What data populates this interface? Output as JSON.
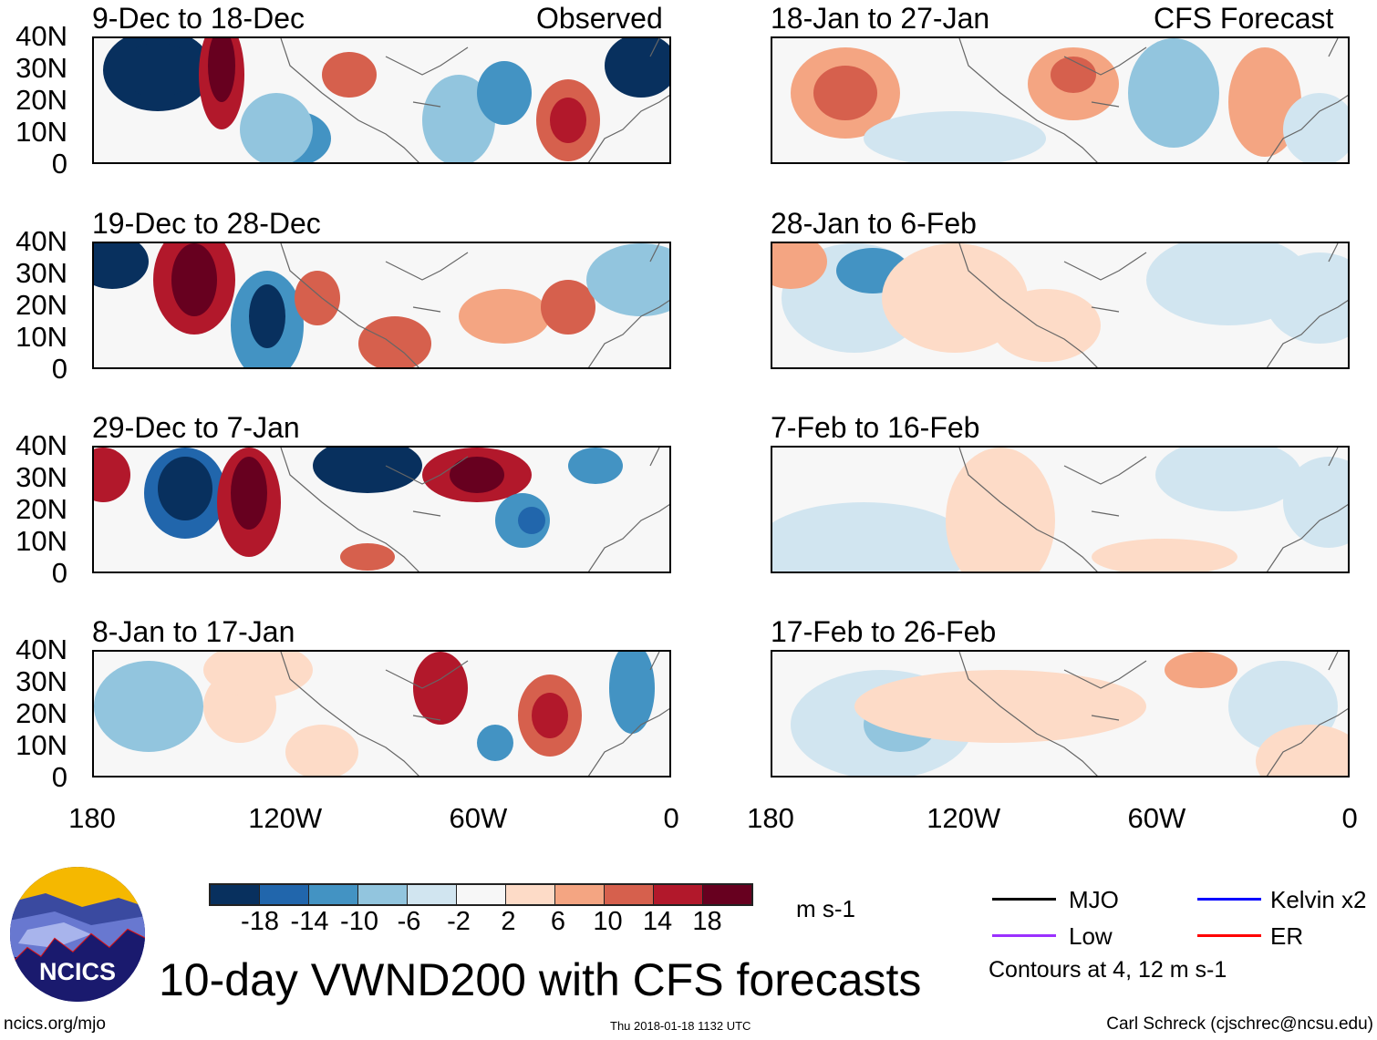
{
  "chart_data": {
    "type": "heatmap",
    "title": "10-day VWND200 with CFS forecasts",
    "units": "m s-1",
    "column_labels": {
      "left": "Observed",
      "right": "CFS Forecast"
    },
    "panels": [
      {
        "title": "9-Dec to 18-Dec",
        "source": "Observed"
      },
      {
        "title": "19-Dec to 28-Dec",
        "source": "Observed"
      },
      {
        "title": "29-Dec to 7-Jan",
        "source": "Observed"
      },
      {
        "title": "8-Jan to 17-Jan",
        "source": "Observed"
      },
      {
        "title": "18-Jan to 27-Jan",
        "source": "CFS Forecast"
      },
      {
        "title": "28-Jan to 6-Feb",
        "source": "CFS Forecast"
      },
      {
        "title": "7-Feb to 16-Feb",
        "source": "CFS Forecast"
      },
      {
        "title": "17-Feb to 26-Feb",
        "source": "CFS Forecast"
      }
    ],
    "y_ticks": [
      "40N",
      "30N",
      "20N",
      "10N",
      "0"
    ],
    "x_ticks": [
      "180",
      "120W",
      "60W",
      "0"
    ],
    "ylim": [
      0,
      40
    ],
    "xlim": [
      -180,
      0
    ],
    "colorbar": {
      "labels": [
        "-18",
        "-14",
        "-10",
        "-6",
        "-2",
        "2",
        "6",
        "10",
        "14",
        "18"
      ],
      "colors": [
        "#08305e",
        "#2166ac",
        "#4393c3",
        "#92c5de",
        "#d1e5f0",
        "#f7f7f7",
        "#fddbc7",
        "#f4a582",
        "#d6604d",
        "#b2182b",
        "#67001f"
      ]
    },
    "legend": [
      {
        "label": "MJO",
        "color": "#000000"
      },
      {
        "label": "Low",
        "color": "#9b30ff"
      },
      {
        "label": "Kelvin x2",
        "color": "#0000ff"
      },
      {
        "label": "ER",
        "color": "#ff0000"
      }
    ],
    "contour_note": "Contours at 4, 12 m s-1"
  },
  "footer": {
    "logo_text": "NCICS",
    "url": "ncics.org/mjo",
    "timestamp": "Thu 2018-01-18 1132 UTC",
    "author": "Carl Schreck (cjschrec@ncsu.edu)"
  }
}
